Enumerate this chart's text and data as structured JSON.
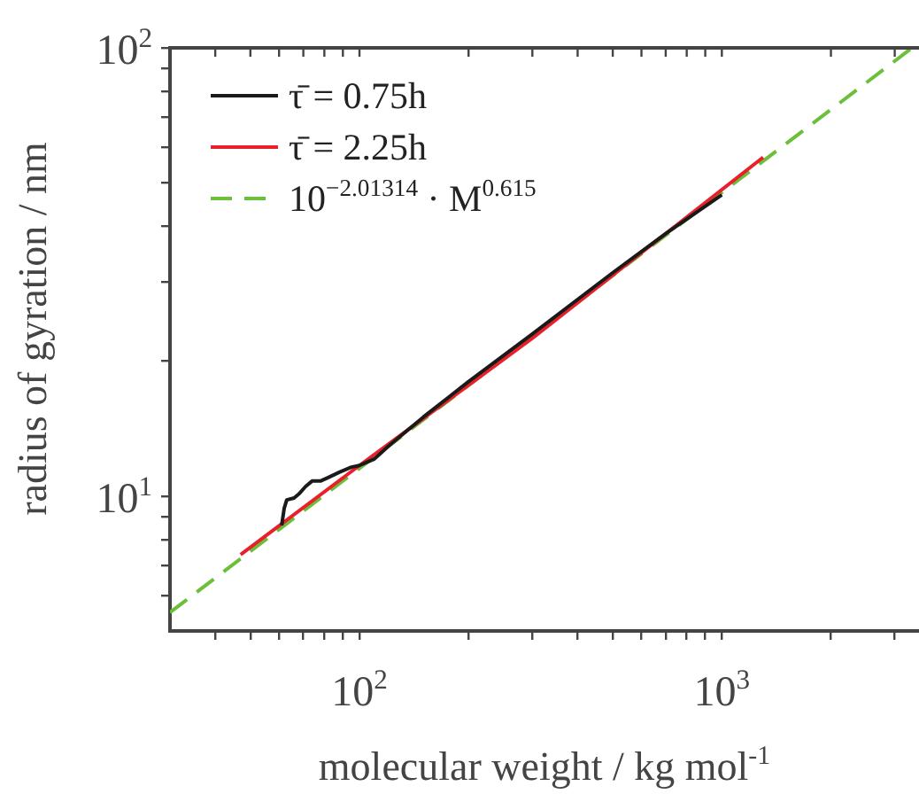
{
  "chart_data": {
    "type": "line",
    "xlabel": "molecular weight / kg mol$^{-1}$",
    "ylabel": "radius of gyration / nm",
    "log": "xy",
    "grid": false,
    "legend": "top left",
    "marker": "none",
    "xlim": [
      30,
      3500
    ],
    "ylim": [
      5,
      100
    ],
    "xticks": [
      {
        "value": 40,
        "label": null
      },
      {
        "value": 50,
        "label": null
      },
      {
        "value": 60,
        "label": null
      },
      {
        "value": 70,
        "label": null
      },
      {
        "value": 80,
        "label": null
      },
      {
        "value": 90,
        "label": null
      },
      {
        "value": 100,
        "label": "10$^{2}$"
      },
      {
        "value": 200,
        "label": null
      },
      {
        "value": 300,
        "label": null
      },
      {
        "value": 400,
        "label": null
      },
      {
        "value": 500,
        "label": null
      },
      {
        "value": 600,
        "label": null
      },
      {
        "value": 700,
        "label": null
      },
      {
        "value": 800,
        "label": null
      },
      {
        "value": 900,
        "label": null
      },
      {
        "value": 1000,
        "label": "10$^{3}$"
      },
      {
        "value": 2000,
        "label": null
      },
      {
        "value": 3000,
        "label": null
      }
    ],
    "yticks": [
      {
        "value": 6,
        "label": null
      },
      {
        "value": 7,
        "label": null
      },
      {
        "value": 8,
        "label": null
      },
      {
        "value": 9,
        "label": null
      },
      {
        "value": 10,
        "label": "10$^{1}$"
      },
      {
        "value": 20,
        "label": null
      },
      {
        "value": 30,
        "label": null
      },
      {
        "value": 40,
        "label": null
      },
      {
        "value": 50,
        "label": null
      },
      {
        "value": 60,
        "label": null
      },
      {
        "value": 70,
        "label": null
      },
      {
        "value": 80,
        "label": null
      },
      {
        "value": 90,
        "label": null
      },
      {
        "value": 100,
        "label": "10$^{2}$"
      }
    ],
    "series": [
      {
        "name": "τ̄ = 0.75h",
        "color": "#1a1a1a",
        "line_style": "solid",
        "x": [
          61,
          62,
          63,
          66,
          68,
          71,
          74,
          78,
          82,
          88,
          95,
          100,
          110,
          120,
          150,
          200,
          300,
          500,
          700,
          1000
        ],
        "values": [
          8.6,
          9.4,
          9.8,
          9.9,
          10.1,
          10.5,
          10.8,
          10.8,
          11.0,
          11.3,
          11.6,
          11.7,
          12.1,
          12.9,
          15.0,
          18.0,
          23.0,
          31.5,
          38.5,
          47
        ]
      },
      {
        "name": "τ̄ = 2.25h",
        "color": "#e8202a",
        "line_style": "solid",
        "x": [
          47,
          100,
          300,
          1300
        ],
        "values": [
          7.4,
          11.7,
          22.5,
          57
        ]
      },
      {
        "name": "10$^{−2.01314}$ · M$^{0.615}$",
        "color": "#6bbf3a",
        "line_style": "dashed",
        "x": [
          30,
          3350
        ],
        "values": [
          5.5,
          100
        ]
      }
    ]
  }
}
